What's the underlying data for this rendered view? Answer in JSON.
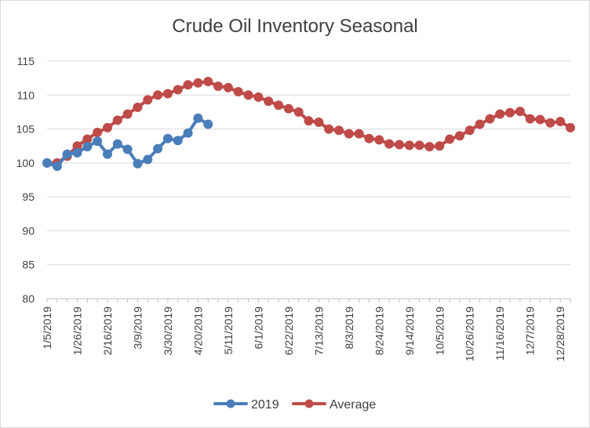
{
  "chart_data": {
    "type": "line",
    "title": "Crude Oil Inventory Seasonal",
    "xlabel": "",
    "ylabel": "",
    "ylim": [
      80,
      115
    ],
    "y_ticks": [
      "80",
      "85",
      "90",
      "95",
      "100",
      "105",
      "110",
      "115"
    ],
    "x_tick_labels": [
      "1/5/2019",
      "1/26/2019",
      "2/16/2019",
      "3/9/2019",
      "3/30/2019",
      "4/20/2019",
      "5/11/2019",
      "6/1/2019",
      "6/22/2019",
      "7/13/2019",
      "8/3/2019",
      "8/24/2019",
      "9/14/2019",
      "10/5/2019",
      "10/26/2019",
      "11/16/2019",
      "12/7/2019",
      "12/28/2019"
    ],
    "grid": "horizontal",
    "legend_position": "bottom",
    "series": [
      {
        "name": "2019",
        "color": "#4a7ebb",
        "values": [
          100.0,
          99.5,
          101.3,
          101.5,
          102.4,
          103.2,
          101.3,
          102.8,
          102.0,
          99.9,
          100.5,
          102.1,
          103.6,
          103.3,
          104.4,
          106.6,
          105.7
        ]
      },
      {
        "name": "Average",
        "color": "#be4b48",
        "values": [
          100.0,
          100.0,
          101.0,
          102.5,
          103.5,
          104.5,
          105.2,
          106.3,
          107.2,
          108.2,
          109.3,
          110.0,
          110.2,
          110.8,
          111.5,
          111.8,
          112.0,
          111.3,
          111.1,
          110.5,
          110.0,
          109.7,
          109.1,
          108.5,
          108.0,
          107.5,
          106.2,
          106.0,
          105.0,
          104.8,
          104.3,
          104.3,
          103.6,
          103.4,
          102.8,
          102.7,
          102.6,
          102.6,
          102.4,
          102.5,
          103.5,
          104.0,
          104.8,
          105.7,
          106.5,
          107.2,
          107.4,
          107.6,
          106.5,
          106.4,
          105.9,
          106.1,
          105.2
        ]
      }
    ]
  }
}
